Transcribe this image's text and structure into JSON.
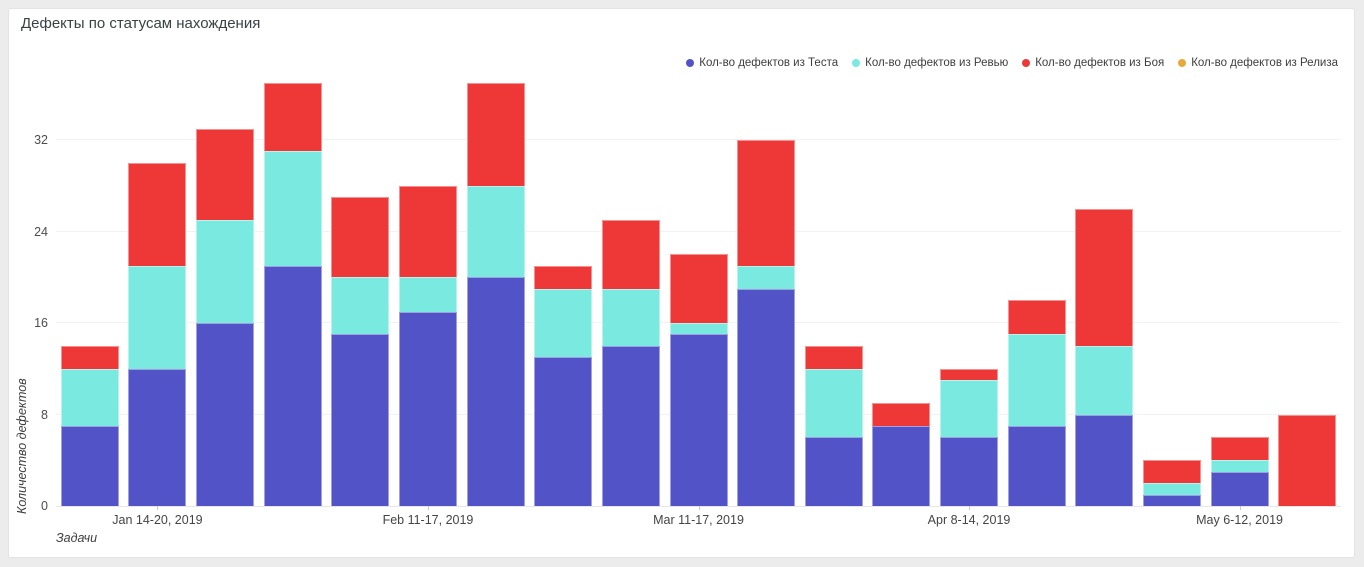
{
  "page": {
    "title": "Дефекты по статусам нахождения"
  },
  "axes": {
    "x_title": "Задачи",
    "y_title": "Количество дефектов"
  },
  "colors": {
    "test": "#5253c7",
    "review": "#7aeae1",
    "combat": "#ee3837",
    "release": "#e9a83b",
    "grid": "#f2f2f2",
    "card_bg": "#ffffff",
    "page_bg": "#ececec",
    "text": "#3d3d3d"
  },
  "chart_data": {
    "type": "bar",
    "stacked": true,
    "title": "Дефекты по статусам нахождения",
    "xlabel": "Задачи",
    "ylabel": "Количество дефектов",
    "grid": true,
    "legend_position": "top-right",
    "n_bars": 19,
    "ylim": [
      0,
      37.6
    ],
    "y_ticks": [
      0,
      8,
      16,
      24,
      32
    ],
    "x_tick_labels": [
      {
        "index": 1,
        "label": "Jan 14-20, 2019"
      },
      {
        "index": 5,
        "label": "Feb 11-17, 2019"
      },
      {
        "index": 9,
        "label": "Mar 11-17, 2019"
      },
      {
        "index": 13,
        "label": "Apr 8-14, 2019"
      },
      {
        "index": 17,
        "label": "May 6-12, 2019"
      }
    ],
    "series": [
      {
        "key": "test",
        "name": "Кол-во дефектов из Теста",
        "color": "#5253c7",
        "values": [
          7,
          12,
          16,
          21,
          15,
          17,
          20,
          13,
          14,
          15,
          19,
          6,
          7,
          6,
          7,
          8,
          1,
          3,
          0
        ]
      },
      {
        "key": "review",
        "name": "Кол-во дефектов из Ревью",
        "color": "#7aeae1",
        "values": [
          5,
          9,
          9,
          10,
          5,
          3,
          8,
          6,
          5,
          1,
          2,
          6,
          0,
          5,
          8,
          6,
          1,
          1,
          0
        ]
      },
      {
        "key": "combat",
        "name": "Кол-во дефектов из Боя",
        "color": "#ee3837",
        "values": [
          2,
          9,
          8,
          6,
          7,
          8,
          9,
          2,
          6,
          6,
          11,
          2,
          2,
          1,
          3,
          12,
          2,
          2,
          8
        ]
      },
      {
        "key": "release",
        "name": "Кол-во дефектов из Релиза",
        "color": "#e9a83b",
        "values": [
          0,
          0,
          0,
          0,
          0,
          0,
          0,
          0,
          0,
          0,
          0,
          0,
          0,
          0,
          0,
          0,
          0,
          0,
          0
        ]
      }
    ]
  }
}
